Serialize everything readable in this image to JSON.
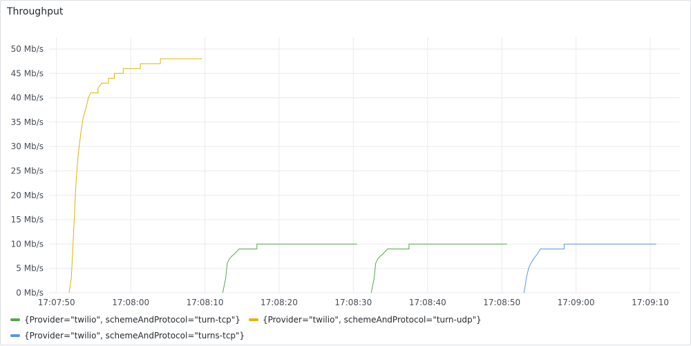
{
  "panel": {
    "title": "Throughput"
  },
  "chart_data": {
    "type": "line",
    "title": "Throughput",
    "xlabel": "",
    "ylabel": "",
    "x_ticks": [
      "17:07:50",
      "17:08:00",
      "17:08:10",
      "17:08:20",
      "17:08:30",
      "17:08:40",
      "17:08:50",
      "17:09:00",
      "17:09:10"
    ],
    "y_ticks": [
      "0 Mb/s",
      "5 Mb/s",
      "10 Mb/s",
      "15 Mb/s",
      "20 Mb/s",
      "25 Mb/s",
      "30 Mb/s",
      "35 Mb/s",
      "40 Mb/s",
      "45 Mb/s",
      "50 Mb/s"
    ],
    "ylim": [
      0,
      50
    ],
    "xlim": [
      "17:07:49",
      "17:09:14"
    ],
    "y_unit": "Mb/s",
    "grid": true,
    "legend_position": "bottom",
    "series": [
      {
        "name": "{Provider=\"twilio\", schemeAndProtocol=\"turn-tcp\"}",
        "color": "#56a64b",
        "points": [
          [
            "17:08:12.4",
            0
          ],
          [
            "17:08:12.8",
            3
          ],
          [
            "17:08:13.0",
            6
          ],
          [
            "17:08:13.3",
            7
          ],
          [
            "17:08:13.6",
            7.5
          ],
          [
            "17:08:14.0",
            8
          ],
          [
            "17:08:14.6",
            9
          ],
          [
            "17:08:17.0",
            10
          ],
          [
            "17:08:30.5",
            10
          ],
          [
            "17:08:32.4",
            0
          ],
          [
            "17:08:32.8",
            3
          ],
          [
            "17:08:33.0",
            6
          ],
          [
            "17:08:33.3",
            7
          ],
          [
            "17:08:33.6",
            7.5
          ],
          [
            "17:08:34.0",
            8
          ],
          [
            "17:08:34.6",
            9
          ],
          [
            "17:08:37.5",
            10
          ],
          [
            "17:08:50.7",
            10
          ]
        ]
      },
      {
        "name": "{Provider=\"twilio\", schemeAndProtocol=\"turn-udp\"}",
        "color": "#e0b400",
        "points": [
          [
            "17:07:51.7",
            0
          ],
          [
            "17:07:52.0",
            3
          ],
          [
            "17:07:52.3",
            12
          ],
          [
            "17:07:52.6",
            22
          ],
          [
            "17:07:52.9",
            28
          ],
          [
            "17:07:53.3",
            33
          ],
          [
            "17:07:53.6",
            36
          ],
          [
            "17:07:54.0",
            38
          ],
          [
            "17:07:54.3",
            40
          ],
          [
            "17:07:54.6",
            41
          ],
          [
            "17:07:55.6",
            42
          ],
          [
            "17:07:56.1",
            43
          ],
          [
            "17:07:57.0",
            44
          ],
          [
            "17:07:57.8",
            45
          ],
          [
            "17:07:59.0",
            46
          ],
          [
            "17:08:01.3",
            47
          ],
          [
            "17:08:04.0",
            48
          ],
          [
            "17:08:09.6",
            48
          ]
        ]
      },
      {
        "name": "{Provider=\"twilio\", schemeAndProtocol=\"turns-tcp\"}",
        "color": "#5794f2",
        "points": [
          [
            "17:08:53.0",
            0
          ],
          [
            "17:08:53.3",
            3
          ],
          [
            "17:08:53.6",
            5
          ],
          [
            "17:08:53.9",
            6
          ],
          [
            "17:08:54.3",
            7
          ],
          [
            "17:08:54.8",
            8
          ],
          [
            "17:08:55.2",
            9
          ],
          [
            "17:08:58.4",
            10
          ],
          [
            "17:09:10.8",
            10
          ]
        ]
      }
    ]
  }
}
